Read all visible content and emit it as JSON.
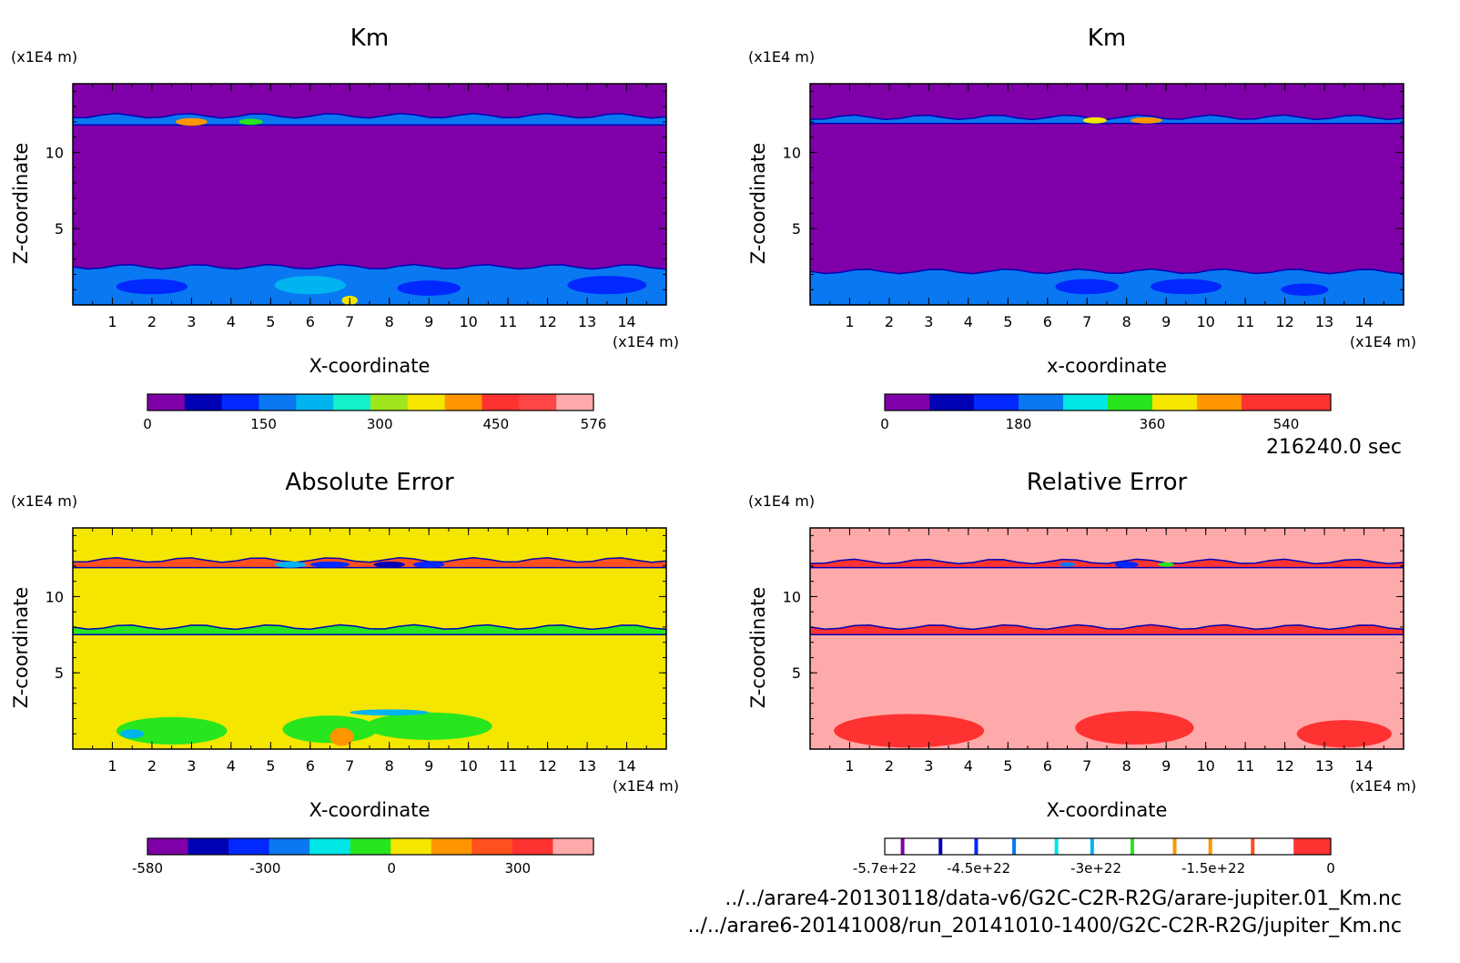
{
  "time_label": "216240.0 sec",
  "footer": {
    "file1": "../../arare4-20130118/data-v6/G2C-C2R-R2G/arare-jupiter.01_Km.nc",
    "file2": "../../arare6-20141008/run_20141010-1400/G2C-C2R-R2G/jupiter_Km.nc"
  },
  "colors": {
    "purple": "#7f00a8",
    "navy": "#0000b4",
    "blue": "#0028ff",
    "mid_blue": "#0a78f0",
    "sky": "#00b4f0",
    "cyan": "#00e6e6",
    "aqua": "#14f0c8",
    "green": "#28e61e",
    "lime": "#a0e61e",
    "yellow": "#f5e600",
    "orange": "#ff9600",
    "red_orange": "#ff501e",
    "red": "#ff3232",
    "pink": "#ffaaaa"
  },
  "chart_data": [
    {
      "id": "panel-km-1",
      "type": "heatmap",
      "title": "Km",
      "xlabel": "X-coordinate",
      "ylabel": "Z-coordinate",
      "x_unit": "(x1E4 m)",
      "y_unit": "(x1E4 m)",
      "xlim": [
        0,
        15
      ],
      "ylim": [
        0,
        14.5
      ],
      "x_ticks": [
        "1",
        "2",
        "3",
        "4",
        "5",
        "6",
        "7",
        "8",
        "9",
        "10",
        "11",
        "12",
        "13",
        "14"
      ],
      "y_ticks": [
        "5",
        "10"
      ],
      "background": "#7f00a8",
      "bands": [
        {
          "z0": 0,
          "z1": 2.5,
          "color": "#0a78f0"
        },
        {
          "z0": 11.8,
          "z1": 12.4,
          "color": "#0a78f0"
        }
      ],
      "blobs": [
        {
          "x": 2.0,
          "z": 1.2,
          "rx": 0.9,
          "rz": 0.5,
          "color": "#0028ff"
        },
        {
          "x": 6.0,
          "z": 1.3,
          "rx": 0.9,
          "rz": 0.6,
          "color": "#00b4f0"
        },
        {
          "x": 9.0,
          "z": 1.1,
          "rx": 0.8,
          "rz": 0.5,
          "color": "#0028ff"
        },
        {
          "x": 13.5,
          "z": 1.3,
          "rx": 1.0,
          "rz": 0.6,
          "color": "#0028ff"
        },
        {
          "x": 7.0,
          "z": 0.3,
          "rx": 0.2,
          "rz": 0.3,
          "color": "#f5e600"
        },
        {
          "x": 3.0,
          "z": 12.0,
          "rx": 0.4,
          "rz": 0.25,
          "color": "#ff9600"
        },
        {
          "x": 4.5,
          "z": 12.0,
          "rx": 0.3,
          "rz": 0.2,
          "color": "#28e61e"
        }
      ],
      "colorbar": {
        "colors": [
          "#7f00a8",
          "#0000b4",
          "#0028ff",
          "#0a78f0",
          "#00b4f0",
          "#14f0c8",
          "#a0e61e",
          "#f5e600",
          "#ff9600",
          "#ff3232",
          "#ff4646",
          "#ffaaaa"
        ],
        "ticks": [
          {
            "value": 0,
            "label": "0"
          },
          {
            "value": 150,
            "label": "150"
          },
          {
            "value": 300,
            "label": "300"
          },
          {
            "value": 450,
            "label": "450"
          },
          {
            "value": 576,
            "label": "576"
          }
        ],
        "range": [
          0,
          576
        ]
      }
    },
    {
      "id": "panel-km-2",
      "type": "heatmap",
      "title": "Km",
      "xlabel": "x-coordinate",
      "ylabel": "Z-coordinate",
      "x_unit": "(x1E4 m)",
      "y_unit": "(x1E4 m)",
      "xlim": [
        0,
        15
      ],
      "ylim": [
        0,
        14.5
      ],
      "x_ticks": [
        "1",
        "2",
        "3",
        "4",
        "5",
        "6",
        "7",
        "8",
        "9",
        "10",
        "11",
        "12",
        "13",
        "14"
      ],
      "y_ticks": [
        "5",
        "10"
      ],
      "background": "#7f00a8",
      "bands": [
        {
          "z0": 0,
          "z1": 2.2,
          "color": "#0a78f0"
        },
        {
          "z0": 11.9,
          "z1": 12.3,
          "color": "#0a78f0"
        }
      ],
      "blobs": [
        {
          "x": 7.0,
          "z": 1.2,
          "rx": 0.8,
          "rz": 0.5,
          "color": "#0028ff"
        },
        {
          "x": 9.5,
          "z": 1.2,
          "rx": 0.9,
          "rz": 0.5,
          "color": "#0028ff"
        },
        {
          "x": 12.5,
          "z": 1.0,
          "rx": 0.6,
          "rz": 0.4,
          "color": "#0028ff"
        },
        {
          "x": 8.5,
          "z": 12.1,
          "rx": 0.4,
          "rz": 0.2,
          "color": "#ff9600"
        },
        {
          "x": 7.2,
          "z": 12.1,
          "rx": 0.3,
          "rz": 0.2,
          "color": "#f5e600"
        }
      ],
      "colorbar": {
        "colors": [
          "#7f00a8",
          "#0000b4",
          "#0028ff",
          "#0a78f0",
          "#00e6e6",
          "#28e61e",
          "#f5e600",
          "#ff9600",
          "#ff3232",
          "#ff3232"
        ],
        "ticks": [
          {
            "value": 0,
            "label": "0"
          },
          {
            "value": 180,
            "label": "180"
          },
          {
            "value": 360,
            "label": "360"
          },
          {
            "value": 540,
            "label": "540"
          }
        ],
        "range": [
          0,
          600
        ]
      }
    },
    {
      "id": "panel-abs-error",
      "type": "heatmap",
      "title": "Absolute Error",
      "xlabel": "X-coordinate",
      "ylabel": "Z-coordinate",
      "x_unit": "(x1E4 m)",
      "y_unit": "(x1E4 m)",
      "xlim": [
        0,
        15
      ],
      "ylim": [
        0,
        14.5
      ],
      "x_ticks": [
        "1",
        "2",
        "3",
        "4",
        "5",
        "6",
        "7",
        "8",
        "9",
        "10",
        "11",
        "12",
        "13",
        "14"
      ],
      "y_ticks": [
        "5",
        "10"
      ],
      "background": "#f5e600",
      "bands": [
        {
          "z0": 7.5,
          "z1": 8.0,
          "color": "#28e61e"
        },
        {
          "z0": 11.9,
          "z1": 12.4,
          "color": "#ff501e"
        }
      ],
      "blobs": [
        {
          "x": 2.5,
          "z": 1.2,
          "rx": 1.4,
          "rz": 0.9,
          "color": "#28e61e"
        },
        {
          "x": 6.5,
          "z": 1.3,
          "rx": 1.2,
          "rz": 0.9,
          "color": "#28e61e"
        },
        {
          "x": 9.0,
          "z": 1.5,
          "rx": 1.6,
          "rz": 0.9,
          "color": "#28e61e"
        },
        {
          "x": 1.5,
          "z": 1.0,
          "rx": 0.3,
          "rz": 0.3,
          "color": "#00b4f0"
        },
        {
          "x": 6.8,
          "z": 0.8,
          "rx": 0.3,
          "rz": 0.6,
          "color": "#ff9600"
        },
        {
          "x": 8.0,
          "z": 2.4,
          "rx": 1.0,
          "rz": 0.2,
          "color": "#00b4f0"
        },
        {
          "x": 6.5,
          "z": 12.1,
          "rx": 0.5,
          "rz": 0.2,
          "color": "#0028ff"
        },
        {
          "x": 8.0,
          "z": 12.1,
          "rx": 0.4,
          "rz": 0.2,
          "color": "#0000b4"
        },
        {
          "x": 9.0,
          "z": 12.1,
          "rx": 0.4,
          "rz": 0.2,
          "color": "#0028ff"
        },
        {
          "x": 5.5,
          "z": 12.1,
          "rx": 0.4,
          "rz": 0.2,
          "color": "#00b4f0"
        }
      ],
      "colorbar": {
        "colors": [
          "#7f00a8",
          "#0000b4",
          "#0028ff",
          "#0a78f0",
          "#00e6e6",
          "#28e61e",
          "#f5e600",
          "#ff9600",
          "#ff501e",
          "#ff3232",
          "#ffaaaa"
        ],
        "ticks": [
          {
            "value": -580,
            "label": "-580"
          },
          {
            "value": -300,
            "label": "-300"
          },
          {
            "value": 0,
            "label": "0"
          },
          {
            "value": 300,
            "label": "300"
          }
        ],
        "range": [
          -580,
          480
        ]
      }
    },
    {
      "id": "panel-rel-error",
      "type": "heatmap",
      "title": "Relative Error",
      "xlabel": "X-coordinate",
      "ylabel": "Z-coordinate",
      "x_unit": "(x1E4 m)",
      "y_unit": "(x1E4 m)",
      "xlim": [
        0,
        15
      ],
      "ylim": [
        0,
        14.5
      ],
      "x_ticks": [
        "1",
        "2",
        "3",
        "4",
        "5",
        "6",
        "7",
        "8",
        "9",
        "10",
        "11",
        "12",
        "13",
        "14"
      ],
      "y_ticks": [
        "5",
        "10"
      ],
      "background": "#ffaaaa",
      "bands": [
        {
          "z0": 7.5,
          "z1": 8.0,
          "color": "#ff3232"
        },
        {
          "z0": 11.9,
          "z1": 12.3,
          "color": "#ff3232"
        }
      ],
      "blobs": [
        {
          "x": 2.5,
          "z": 1.2,
          "rx": 1.9,
          "rz": 1.1,
          "color": "#ff3232"
        },
        {
          "x": 8.2,
          "z": 1.4,
          "rx": 1.5,
          "rz": 1.1,
          "color": "#ff3232"
        },
        {
          "x": 13.5,
          "z": 1.0,
          "rx": 1.2,
          "rz": 0.9,
          "color": "#ff3232"
        },
        {
          "x": 8.0,
          "z": 12.1,
          "rx": 0.3,
          "rz": 0.2,
          "color": "#0028ff"
        },
        {
          "x": 9.0,
          "z": 12.1,
          "rx": 0.2,
          "rz": 0.15,
          "color": "#28e61e"
        },
        {
          "x": 6.5,
          "z": 12.1,
          "rx": 0.2,
          "rz": 0.15,
          "color": "#0a78f0"
        }
      ],
      "colorbar": {
        "colors": [
          "#ffffff",
          "#ffffff",
          "#ffffff",
          "#ffffff",
          "#ffffff",
          "#ffffff",
          "#ffffff",
          "#ffffff",
          "#ffffff",
          "#ffffff",
          "#ffffff",
          "#ff3232"
        ],
        "markers": [
          {
            "pos": 0.04,
            "color": "#7f00a8"
          },
          {
            "pos": 0.125,
            "color": "#0000b4"
          },
          {
            "pos": 0.205,
            "color": "#0028ff"
          },
          {
            "pos": 0.29,
            "color": "#0a78f0"
          },
          {
            "pos": 0.385,
            "color": "#00e6e6"
          },
          {
            "pos": 0.465,
            "color": "#00b4f0"
          },
          {
            "pos": 0.555,
            "color": "#28e61e"
          },
          {
            "pos": 0.65,
            "color": "#ff9600"
          },
          {
            "pos": 0.73,
            "color": "#ff9600"
          },
          {
            "pos": 0.825,
            "color": "#ff501e"
          }
        ],
        "ticks": [
          {
            "value": -5.7e+22,
            "label": "-5.7e+22"
          },
          {
            "value": -4.5e+22,
            "label": "-4.5e+22"
          },
          {
            "value": -3e+22,
            "label": "-3e+22"
          },
          {
            "value": -1.5e+22,
            "label": "-1.5e+22"
          },
          {
            "value": 0,
            "label": "0"
          }
        ],
        "range": [
          -5.7e+22,
          0
        ]
      }
    }
  ]
}
